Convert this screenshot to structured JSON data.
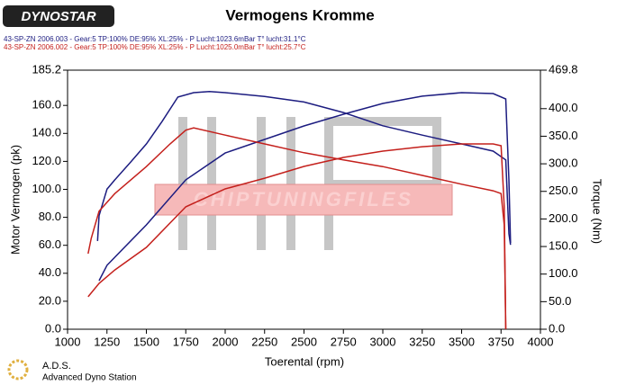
{
  "chart_data": {
    "type": "line",
    "logo": "DYNOSTAR",
    "title": "Vermogens Kromme",
    "legend": [
      {
        "text": "43-SP-ZN 2006.003 - Gear:5 TP:100% DE:95% XL:25%   - P Lucht:1023.6mBar T° lucht:31.1°C",
        "color": "#1c1c80"
      },
      {
        "text": "43-SP-ZN 2006.002 - Gear:5 TP:100% DE:95% XL:25%   - P Lucht:1025.0mBar T° lucht:25.7°C",
        "color": "#c4201c"
      }
    ],
    "xlabel": "Toerental (rpm)",
    "ylabel": "Motor Vermogen (pk)",
    "y2label": "Torque (Nm)",
    "watermark": "CHIPTUNINGFILES",
    "footer": [
      "A.D.S.",
      "Advanced Dyno Station"
    ],
    "xlim": [
      1000,
      4000
    ],
    "xticks": [
      1000,
      1250,
      1500,
      1750,
      2000,
      2250,
      2500,
      2750,
      3000,
      3250,
      3500,
      3750,
      4000
    ],
    "ylim": [
      0,
      185.2
    ],
    "yticks": [
      {
        "value": 0,
        "label": "0.0"
      },
      {
        "value": 20,
        "label": "20.0"
      },
      {
        "value": 40,
        "label": "40.0"
      },
      {
        "value": 60,
        "label": "60.0"
      },
      {
        "value": 80,
        "label": "80.0"
      },
      {
        "value": 100,
        "label": "100.0"
      },
      {
        "value": 120,
        "label": "120.0"
      },
      {
        "value": 140,
        "label": "140.0"
      },
      {
        "value": 160,
        "label": "160.0"
      },
      185.2
    ],
    "y2lim": [
      0,
      469.8
    ],
    "y2ticks": [
      {
        "value": 0,
        "label": "0.0"
      },
      {
        "value": 50,
        "label": "50.0"
      },
      {
        "value": 100,
        "label": "100.0"
      },
      {
        "value": 150,
        "label": "150.0"
      },
      {
        "value": 200,
        "label": "200.0"
      },
      {
        "value": 250,
        "label": "250.0"
      },
      {
        "value": 300,
        "label": "300.0"
      },
      {
        "value": 350,
        "label": "350.0"
      },
      {
        "value": 400,
        "label": "400.0"
      },
      469.8
    ],
    "series": [
      {
        "color": "#1c1c80",
        "axis": "y2",
        "x": [
          1190,
          1200,
          1250,
          1300,
          1400,
          1500,
          1600,
          1700,
          1800,
          1900,
          2000,
          2250,
          2500,
          2750,
          3000,
          3250,
          3500,
          3700,
          3780,
          3800,
          3810
        ],
        "values": [
          160,
          206,
          254,
          271,
          303,
          336,
          377,
          421,
          429,
          431,
          429,
          422,
          412,
          393,
          369,
          352,
          336,
          323,
          307,
          173,
          153
        ]
      },
      {
        "color": "#1c1c80",
        "x": [
          1200,
          1250,
          1500,
          1750,
          2000,
          2250,
          2500,
          2750,
          3000,
          3250,
          3500,
          3700,
          3780,
          3800,
          3810
        ],
        "values": [
          34.7,
          45.7,
          74.6,
          106.8,
          126,
          135.7,
          145.3,
          153.7,
          161.4,
          166.6,
          169.1,
          168.5,
          164.6,
          106.8,
          61.7
        ]
      },
      {
        "color": "#c4201c",
        "axis": "y2",
        "x": [
          1130,
          1150,
          1200,
          1300,
          1500,
          1650,
          1750,
          1800,
          2000,
          2250,
          2500,
          2750,
          3000,
          3250,
          3500,
          3700,
          3750,
          3770,
          3780
        ],
        "values": [
          137,
          165,
          214,
          246,
          295,
          336,
          361,
          365,
          352,
          336,
          320,
          307,
          295,
          279,
          263,
          251,
          246,
          189,
          0
        ]
      },
      {
        "color": "#c4201c",
        "x": [
          1130,
          1200,
          1300,
          1500,
          1750,
          2000,
          2250,
          2500,
          2750,
          3000,
          3250,
          3500,
          3700,
          3750,
          3770,
          3780
        ],
        "values": [
          23.2,
          32.8,
          42.4,
          58.5,
          87.5,
          100.3,
          108,
          116.4,
          122.8,
          127.3,
          130.5,
          132.5,
          132.5,
          131.2,
          87.5,
          0
        ]
      }
    ]
  }
}
